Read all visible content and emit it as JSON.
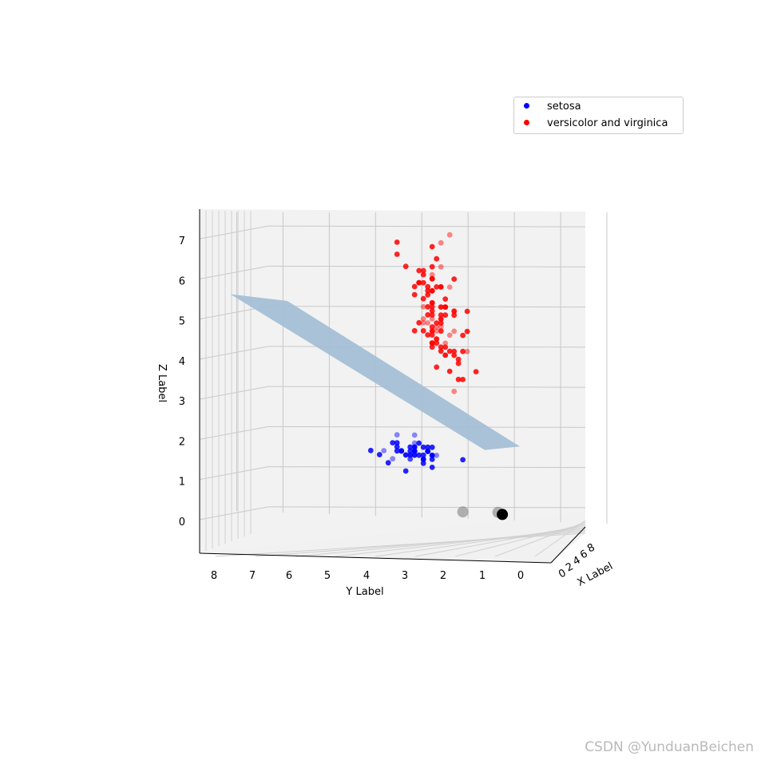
{
  "chart_data": {
    "type": "scatter",
    "projection": "3d",
    "xlabel": "X Label",
    "ylabel": "Y Label",
    "zlabel": "Z Label",
    "x_ticks": [
      "0",
      "2",
      "4",
      "6",
      "8"
    ],
    "y_ticks": [
      "8",
      "7",
      "6",
      "5",
      "4",
      "3",
      "2",
      "1",
      "0"
    ],
    "z_ticks": [
      "0",
      "1",
      "2",
      "3",
      "4",
      "5",
      "6",
      "7"
    ],
    "ylim": [
      0,
      8.3
    ],
    "zlim": [
      -0.4,
      7.4
    ],
    "grid": true,
    "legend_position": "top-right",
    "series": [
      {
        "name": "setosa",
        "color": "#0000ff",
        "points": [
          [
            3.5,
            1.4
          ],
          [
            3.0,
            1.4
          ],
          [
            3.2,
            1.3
          ],
          [
            3.1,
            1.5
          ],
          [
            3.6,
            1.4
          ],
          [
            3.9,
            1.7
          ],
          [
            3.4,
            1.4
          ],
          [
            3.4,
            1.5
          ],
          [
            2.9,
            1.4
          ],
          [
            3.1,
            1.5
          ],
          [
            3.7,
            1.5
          ],
          [
            3.4,
            1.6
          ],
          [
            3.0,
            1.4
          ],
          [
            3.0,
            1.1
          ],
          [
            4.0,
            1.2
          ],
          [
            4.4,
            1.5
          ],
          [
            3.9,
            1.3
          ],
          [
            3.5,
            1.4
          ],
          [
            3.8,
            1.7
          ],
          [
            3.8,
            1.5
          ],
          [
            3.4,
            1.7
          ],
          [
            3.7,
            1.5
          ],
          [
            3.6,
            1.0
          ],
          [
            3.3,
            1.7
          ],
          [
            3.4,
            1.9
          ],
          [
            3.0,
            1.6
          ],
          [
            3.4,
            1.6
          ],
          [
            3.5,
            1.5
          ],
          [
            3.4,
            1.4
          ],
          [
            3.2,
            1.6
          ],
          [
            3.1,
            1.6
          ],
          [
            3.4,
            1.5
          ],
          [
            4.1,
            1.5
          ],
          [
            4.2,
            1.4
          ],
          [
            3.1,
            1.5
          ],
          [
            3.2,
            1.2
          ],
          [
            3.5,
            1.3
          ],
          [
            3.6,
            1.4
          ],
          [
            3.0,
            1.3
          ],
          [
            3.4,
            1.5
          ],
          [
            3.5,
            1.3
          ],
          [
            2.3,
            1.3
          ],
          [
            3.2,
            1.3
          ],
          [
            3.5,
            1.6
          ],
          [
            3.8,
            1.9
          ],
          [
            3.0,
            1.4
          ],
          [
            3.8,
            1.6
          ],
          [
            3.2,
            1.4
          ],
          [
            3.7,
            1.5
          ],
          [
            3.3,
            1.4
          ]
        ]
      },
      {
        "name": "versicolor and virginica",
        "color": "#ff0000",
        "points": [
          [
            3.2,
            4.7
          ],
          [
            3.2,
            4.5
          ],
          [
            3.1,
            4.9
          ],
          [
            2.3,
            4.0
          ],
          [
            2.8,
            4.6
          ],
          [
            2.8,
            4.5
          ],
          [
            3.3,
            4.7
          ],
          [
            2.4,
            3.3
          ],
          [
            2.9,
            4.6
          ],
          [
            2.7,
            3.9
          ],
          [
            2.0,
            3.5
          ],
          [
            3.0,
            4.2
          ],
          [
            2.2,
            4.0
          ],
          [
            2.9,
            4.7
          ],
          [
            2.9,
            3.6
          ],
          [
            3.1,
            4.4
          ],
          [
            3.0,
            4.5
          ],
          [
            2.7,
            4.1
          ],
          [
            2.2,
            4.5
          ],
          [
            2.5,
            3.9
          ],
          [
            3.2,
            4.8
          ],
          [
            2.8,
            4.0
          ],
          [
            2.5,
            4.9
          ],
          [
            2.8,
            4.7
          ],
          [
            2.9,
            4.3
          ],
          [
            3.0,
            4.4
          ],
          [
            2.8,
            4.8
          ],
          [
            3.0,
            5.0
          ],
          [
            2.9,
            4.5
          ],
          [
            2.6,
            3.5
          ],
          [
            2.4,
            3.8
          ],
          [
            2.4,
            3.7
          ],
          [
            2.7,
            3.9
          ],
          [
            2.7,
            5.1
          ],
          [
            3.0,
            4.5
          ],
          [
            3.4,
            4.5
          ],
          [
            3.1,
            4.7
          ],
          [
            2.3,
            4.4
          ],
          [
            3.0,
            4.1
          ],
          [
            2.5,
            4.0
          ],
          [
            2.6,
            4.4
          ],
          [
            3.0,
            4.6
          ],
          [
            2.6,
            4.0
          ],
          [
            2.3,
            3.3
          ],
          [
            2.7,
            4.2
          ],
          [
            3.0,
            4.2
          ],
          [
            2.9,
            4.2
          ],
          [
            2.9,
            4.3
          ],
          [
            2.5,
            3.0
          ],
          [
            2.8,
            4.1
          ],
          [
            3.3,
            6.0
          ],
          [
            2.7,
            5.1
          ],
          [
            3.0,
            5.9
          ],
          [
            2.9,
            5.6
          ],
          [
            3.0,
            5.8
          ],
          [
            3.0,
            6.6
          ],
          [
            2.5,
            4.5
          ],
          [
            2.9,
            6.3
          ],
          [
            2.5,
            5.8
          ],
          [
            3.6,
            6.1
          ],
          [
            3.2,
            5.1
          ],
          [
            2.7,
            5.3
          ],
          [
            3.0,
            5.5
          ],
          [
            2.5,
            5.0
          ],
          [
            2.8,
            5.1
          ],
          [
            3.2,
            5.3
          ],
          [
            3.0,
            5.5
          ],
          [
            3.8,
            6.7
          ],
          [
            2.6,
            6.9
          ],
          [
            2.2,
            5.0
          ],
          [
            3.2,
            5.7
          ],
          [
            2.8,
            4.9
          ],
          [
            2.8,
            6.7
          ],
          [
            2.7,
            4.9
          ],
          [
            3.3,
            5.7
          ],
          [
            3.2,
            6.0
          ],
          [
            2.8,
            4.8
          ],
          [
            3.0,
            4.9
          ],
          [
            2.8,
            5.6
          ],
          [
            3.0,
            5.8
          ],
          [
            2.8,
            6.1
          ],
          [
            3.8,
            6.4
          ],
          [
            2.8,
            5.6
          ],
          [
            2.8,
            5.1
          ],
          [
            2.6,
            5.6
          ],
          [
            3.0,
            6.1
          ],
          [
            3.4,
            5.6
          ],
          [
            3.1,
            5.5
          ],
          [
            3.0,
            4.8
          ],
          [
            3.1,
            5.4
          ],
          [
            3.1,
            5.6
          ],
          [
            3.1,
            5.1
          ],
          [
            2.7,
            5.1
          ],
          [
            3.2,
            5.9
          ],
          [
            3.3,
            5.7
          ],
          [
            3.0,
            5.2
          ],
          [
            2.5,
            5.0
          ],
          [
            3.0,
            5.2
          ],
          [
            3.4,
            5.4
          ],
          [
            3.0,
            5.1
          ]
        ]
      }
    ],
    "extra_points": [
      {
        "y": 2.3,
        "z": 0.0,
        "color": "#808080",
        "size": "large"
      },
      {
        "y": 1.5,
        "z": 0.0,
        "color": "#808080",
        "size": "large"
      },
      {
        "y": 1.4,
        "z": -0.05,
        "color": "#000000",
        "size": "large"
      }
    ],
    "plane": {
      "color": "#a4bfd5",
      "corners_yz": [
        [
          7.6,
          5.35
        ],
        [
          6.3,
          5.2
        ],
        [
          1.0,
          1.65
        ],
        [
          1.8,
          1.55
        ]
      ]
    }
  },
  "legend": {
    "items": [
      {
        "label": "setosa",
        "color": "#0000ff"
      },
      {
        "label": "versicolor and virginica",
        "color": "#ff0000"
      }
    ]
  },
  "watermark": "CSDN @YunduanBeichen"
}
